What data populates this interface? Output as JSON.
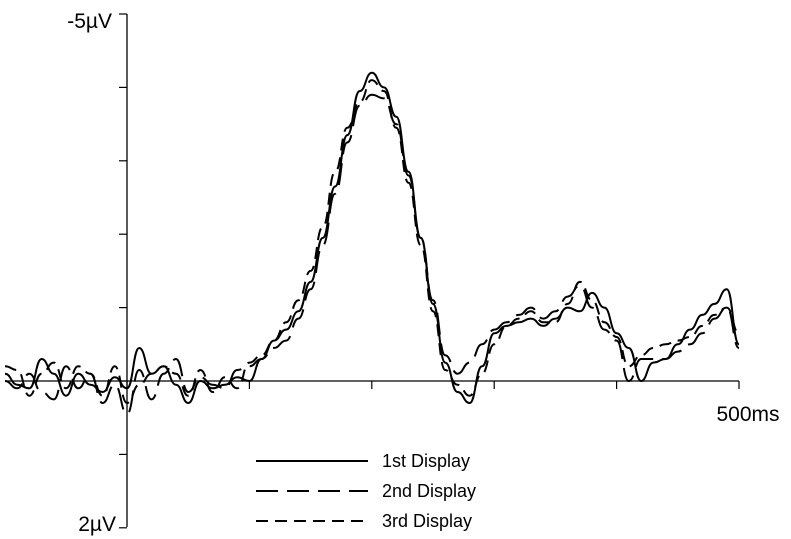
{
  "chart_data": {
    "type": "line",
    "title": "",
    "xlabel": "",
    "ylabel": "",
    "x_range_ms": [
      -100,
      500
    ],
    "y_range_uV": [
      -5,
      2
    ],
    "y_axis_inverted": true,
    "y_tick_labels": {
      "top": "-5µV",
      "bottom": "2µV"
    },
    "x_tick_label_end": "500ms",
    "y_tick_values_uV": [
      -5,
      -4,
      -3,
      -2,
      -1,
      0,
      1,
      2
    ],
    "x_tick_values_ms": [
      0,
      100,
      200,
      300,
      400,
      500
    ],
    "grid": false,
    "legend_position": "bottom-center",
    "series": [
      {
        "name": "1st Display",
        "dash": "solid",
        "x": [
          -100,
          -90,
          -80,
          -70,
          -60,
          -50,
          -40,
          -30,
          -20,
          -10,
          0,
          10,
          20,
          30,
          40,
          50,
          60,
          70,
          80,
          90,
          100,
          110,
          120,
          130,
          140,
          150,
          160,
          170,
          180,
          190,
          200,
          210,
          220,
          230,
          240,
          250,
          260,
          270,
          280,
          290,
          300,
          310,
          320,
          330,
          340,
          350,
          360,
          370,
          380,
          390,
          400,
          410,
          420,
          430,
          440,
          450,
          460,
          470,
          480,
          490,
          500
        ],
        "values": [
          -0.1,
          0.05,
          0.1,
          -0.3,
          -0.1,
          0.2,
          -0.1,
          0.05,
          0.15,
          -0.05,
          0.1,
          -0.45,
          -0.1,
          -0.2,
          0.05,
          0.3,
          0.0,
          0.1,
          0.05,
          -0.05,
          0.0,
          -0.3,
          -0.55,
          -0.7,
          -0.95,
          -1.35,
          -1.95,
          -2.65,
          -3.35,
          -3.95,
          -4.2,
          -4.0,
          -3.6,
          -2.85,
          -1.95,
          -1.05,
          -0.25,
          0.15,
          0.3,
          -0.2,
          -0.65,
          -0.75,
          -0.8,
          -0.85,
          -0.75,
          -0.85,
          -1.0,
          -0.95,
          -1.2,
          -1.0,
          -0.65,
          -0.45,
          0.0,
          -0.25,
          -0.3,
          -0.5,
          -0.7,
          -0.9,
          -1.05,
          -1.25,
          -0.5
        ]
      },
      {
        "name": "2nd Display",
        "dash": "long",
        "x": [
          -100,
          -90,
          -80,
          -70,
          -60,
          -50,
          -40,
          -30,
          -20,
          -10,
          0,
          10,
          20,
          30,
          40,
          50,
          60,
          70,
          80,
          90,
          100,
          110,
          120,
          130,
          140,
          150,
          160,
          170,
          180,
          190,
          200,
          210,
          220,
          230,
          240,
          250,
          260,
          270,
          280,
          290,
          300,
          310,
          320,
          330,
          340,
          350,
          360,
          370,
          380,
          390,
          400,
          410,
          420,
          430,
          440,
          450,
          460,
          470,
          480,
          490,
          500
        ],
        "values": [
          0.0,
          0.1,
          -0.1,
          0.15,
          0.25,
          -0.2,
          0.1,
          -0.1,
          0.3,
          0.05,
          0.45,
          -0.15,
          0.25,
          -0.1,
          -0.3,
          0.15,
          -0.05,
          0.05,
          0.1,
          -0.15,
          -0.2,
          -0.3,
          -0.45,
          -0.55,
          -0.85,
          -1.25,
          -1.85,
          -2.55,
          -3.25,
          -3.75,
          -3.9,
          -3.85,
          -3.5,
          -2.8,
          -1.95,
          -1.1,
          -0.35,
          -0.1,
          -0.25,
          -0.5,
          -0.7,
          -0.8,
          -0.9,
          -1.0,
          -0.85,
          -0.95,
          -1.15,
          -1.3,
          -1.0,
          -0.7,
          -0.55,
          0.0,
          -0.3,
          -0.3,
          -0.3,
          -0.4,
          -0.5,
          -0.65,
          -0.85,
          -1.0,
          -0.45
        ]
      },
      {
        "name": "3rd Display",
        "dash": "medium",
        "x": [
          -100,
          -90,
          -80,
          -70,
          -60,
          -50,
          -40,
          -30,
          -20,
          -10,
          0,
          10,
          20,
          30,
          40,
          50,
          60,
          70,
          80,
          90,
          100,
          110,
          120,
          130,
          140,
          150,
          160,
          170,
          180,
          190,
          200,
          210,
          220,
          230,
          240,
          250,
          260,
          270,
          280,
          290,
          300,
          310,
          320,
          330,
          340,
          350,
          360,
          370,
          380,
          390,
          400,
          410,
          420,
          430,
          440,
          450,
          460,
          470,
          480,
          490,
          500
        ],
        "values": [
          -0.2,
          -0.15,
          0.2,
          -0.1,
          -0.25,
          0.1,
          -0.2,
          -0.1,
          0.2,
          -0.2,
          0.3,
          0.05,
          -0.1,
          -0.2,
          -0.1,
          0.2,
          -0.15,
          0.15,
          -0.05,
          0.1,
          -0.25,
          -0.35,
          -0.55,
          -0.8,
          -1.1,
          -1.5,
          -2.1,
          -2.85,
          -3.45,
          -3.8,
          -4.1,
          -3.95,
          -3.45,
          -2.7,
          -1.85,
          -0.95,
          -0.15,
          0.05,
          0.2,
          -0.1,
          -0.5,
          -0.75,
          -0.85,
          -0.95,
          -0.8,
          -0.8,
          -1.05,
          -1.35,
          -1.1,
          -0.8,
          -0.6,
          -0.2,
          -0.35,
          -0.45,
          -0.5,
          -0.55,
          -0.6,
          -0.75,
          -0.9,
          -1.0,
          -0.65
        ]
      }
    ]
  }
}
